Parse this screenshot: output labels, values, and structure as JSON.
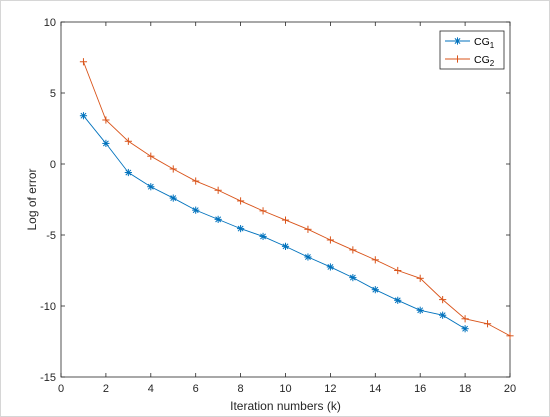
{
  "chart_data": {
    "type": "line",
    "title": "",
    "xlabel": "Iteration numbers (k)",
    "ylabel": "Log of error",
    "xlim": [
      0,
      20
    ],
    "ylim": [
      -15,
      10
    ],
    "xticks": [
      0,
      2,
      4,
      6,
      8,
      10,
      12,
      14,
      16,
      18,
      20
    ],
    "yticks": [
      10,
      5,
      0,
      -5,
      -10,
      -15
    ],
    "grid": false,
    "legend_position": "top-right",
    "series": [
      {
        "name_base": "CG",
        "name_sub": "1",
        "marker": "asterisk",
        "color": "#0072bd",
        "x": [
          1,
          2,
          3,
          4,
          5,
          6,
          7,
          8,
          9,
          10,
          11,
          12,
          13,
          14,
          15,
          16,
          17,
          18
        ],
        "y": [
          3.4,
          1.45,
          -0.6,
          -1.6,
          -2.4,
          -3.25,
          -3.9,
          -4.55,
          -5.1,
          -5.8,
          -6.55,
          -7.25,
          -8.0,
          -8.85,
          -9.6,
          -10.3,
          -10.65,
          -11.6
        ]
      },
      {
        "name_base": "CG",
        "name_sub": "2",
        "marker": "plus",
        "color": "#d95319",
        "x": [
          1,
          2,
          3,
          4,
          5,
          6,
          7,
          8,
          9,
          10,
          11,
          12,
          13,
          14,
          15,
          16,
          17,
          18,
          19,
          20
        ],
        "y": [
          7.2,
          3.1,
          1.6,
          0.55,
          -0.35,
          -1.2,
          -1.85,
          -2.6,
          -3.3,
          -3.95,
          -4.6,
          -5.35,
          -6.05,
          -6.75,
          -7.5,
          -8.05,
          -9.55,
          -10.9,
          -11.25,
          -12.1
        ]
      }
    ]
  }
}
